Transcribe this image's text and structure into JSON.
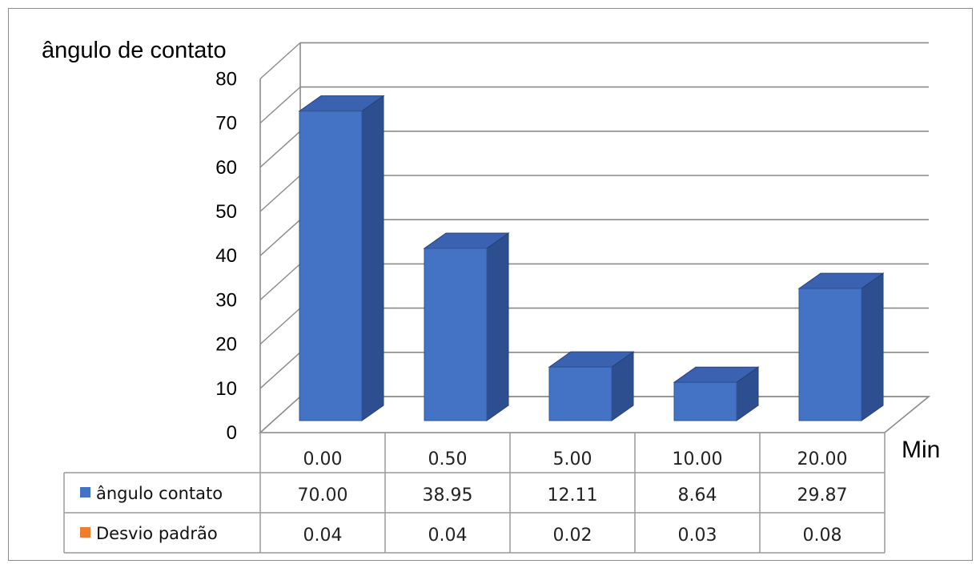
{
  "chart_data": {
    "type": "bar",
    "ylabel": "ângulo de contato",
    "xlabel": "Min",
    "ylim": [
      0,
      80
    ],
    "yticks": [
      "0",
      "10",
      "20",
      "30",
      "40",
      "50",
      "60",
      "70",
      "80"
    ],
    "grid": true,
    "categories": [
      "0.00",
      "0.50",
      "5.00",
      "10.00",
      "20.00"
    ],
    "series": [
      {
        "name": "ângulo contato",
        "values": [
          70.0,
          38.95,
          12.11,
          8.64,
          29.87
        ],
        "table_values": [
          "70.00",
          "38.95",
          "12.11",
          "8.64",
          "29.87"
        ],
        "color": "#4472c4",
        "plotted": true
      },
      {
        "name": "Desvio padrão",
        "values": [
          0.04,
          0.04,
          0.02,
          0.03,
          0.08
        ],
        "table_values": [
          "0.04",
          "0.04",
          "0.02",
          "0.03",
          "0.08"
        ],
        "color": "#ed7d31",
        "plotted": false
      }
    ]
  }
}
